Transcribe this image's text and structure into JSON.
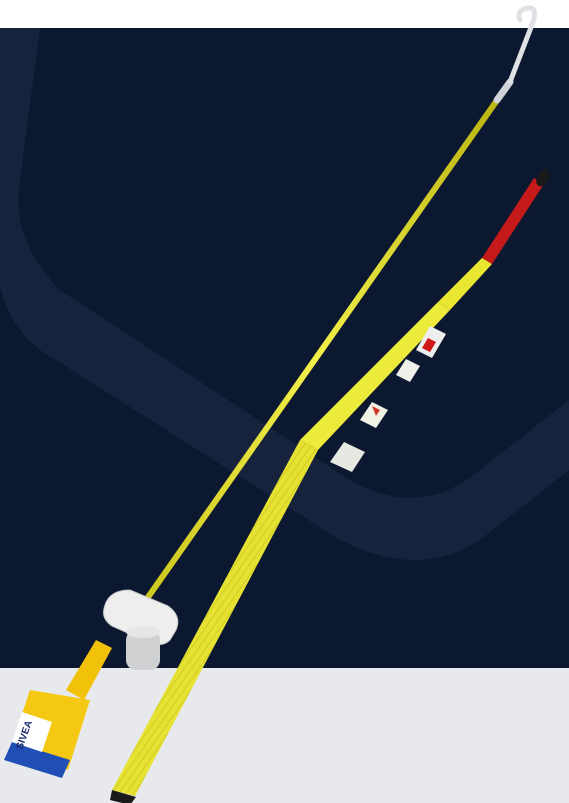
{
  "product_photo": {
    "background_colors": {
      "top_band": "#ffffff",
      "navy_panel": "#0c1730",
      "navy_shape": "#1a2640",
      "floor": "#e8e9ec"
    },
    "items": [
      {
        "name": "hook-stick",
        "colors": {
          "pole": "#e7e22a",
          "hook": "#d8dadc",
          "grip": "#f2c20a",
          "clamp": "#eeeeee"
        }
      },
      {
        "name": "telescopic-stick",
        "colors": {
          "pole": "#ecea3a",
          "tip": "#c41a1a",
          "cap": "#1a1a1a",
          "band": "#e8e8e2"
        }
      }
    ],
    "printed_labels": {
      "detector_brand": "SIVEA",
      "stick_label": "SIVEA"
    }
  }
}
